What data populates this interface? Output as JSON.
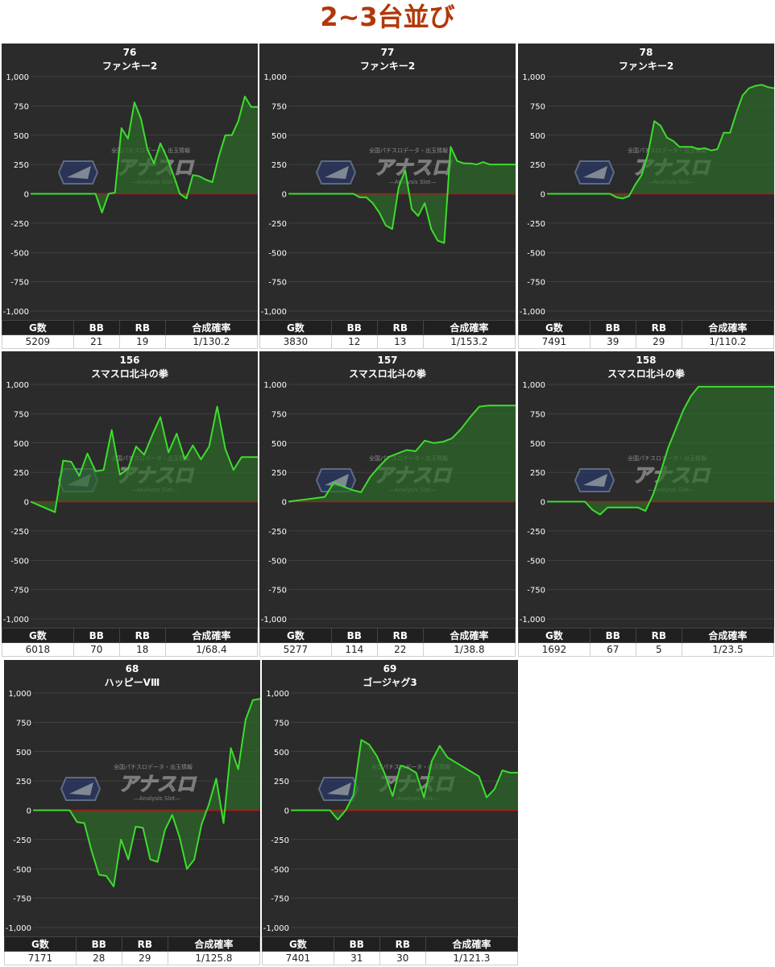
{
  "page": {
    "title": "2~3台並び"
  },
  "watermark": {
    "brand": "アナスロ",
    "tagline": "全国パチスロデータ・出玉情報",
    "sub": "Analysis Slot"
  },
  "stats_headers": [
    "G数",
    "BB",
    "RB",
    "合成確率"
  ],
  "colors": {
    "line": "#3ddc2e",
    "fill": "#2e6b2a",
    "zero": "#b01a1a",
    "bg": "#2b2b2b",
    "grid": "#555555"
  },
  "cards": [
    {
      "number": "76",
      "machine": "ファンキー2",
      "stats": [
        "5209",
        "21",
        "19",
        "1/130.2"
      ]
    },
    {
      "number": "77",
      "machine": "ファンキー2",
      "stats": [
        "3830",
        "12",
        "13",
        "1/153.2"
      ]
    },
    {
      "number": "78",
      "machine": "ファンキー2",
      "stats": [
        "7491",
        "39",
        "29",
        "1/110.2"
      ]
    },
    {
      "number": "156",
      "machine": "スマスロ北斗の拳",
      "stats": [
        "6018",
        "70",
        "18",
        "1/68.4"
      ]
    },
    {
      "number": "157",
      "machine": "スマスロ北斗の拳",
      "stats": [
        "5277",
        "114",
        "22",
        "1/38.8"
      ]
    },
    {
      "number": "158",
      "machine": "スマスロ北斗の拳",
      "stats": [
        "1692",
        "67",
        "5",
        "1/23.5"
      ]
    },
    {
      "number": "68",
      "machine": "ハッピーVⅢ",
      "stats": [
        "7171",
        "28",
        "29",
        "1/125.8"
      ]
    },
    {
      "number": "69",
      "machine": "ゴージャグ3",
      "stats": [
        "7401",
        "31",
        "30",
        "1/121.3"
      ]
    }
  ],
  "chart_data": [
    {
      "type": "area",
      "title": "76 ファンキー2",
      "ylim": [
        -1000,
        1000
      ],
      "yticks": [
        "1,000",
        "750",
        "500",
        "250",
        "0",
        "-250",
        "-500",
        "-750",
        "-1,000"
      ],
      "values": [
        0,
        0,
        0,
        0,
        0,
        0,
        0,
        0,
        0,
        0,
        0,
        -160,
        0,
        10,
        560,
        470,
        780,
        640,
        380,
        260,
        430,
        310,
        160,
        0,
        -40,
        160,
        150,
        120,
        100,
        320,
        500,
        500,
        620,
        830,
        740,
        740
      ]
    },
    {
      "type": "area",
      "title": "77 ファンキー2",
      "ylim": [
        -1000,
        1000
      ],
      "yticks": [
        "1,000",
        "750",
        "500",
        "250",
        "0",
        "-250",
        "-500",
        "-750",
        "-1,000"
      ],
      "values": [
        0,
        0,
        0,
        0,
        0,
        0,
        0,
        0,
        0,
        0,
        0,
        -30,
        -30,
        -80,
        -160,
        -270,
        -300,
        60,
        200,
        -130,
        -190,
        -80,
        -300,
        -400,
        -420,
        400,
        280,
        260,
        260,
        250,
        270,
        250,
        250,
        250,
        250,
        250
      ]
    },
    {
      "type": "area",
      "title": "78 ファンキー2",
      "ylim": [
        -1000,
        1000
      ],
      "yticks": [
        "1,000",
        "750",
        "500",
        "250",
        "0",
        "-250",
        "-500",
        "-750",
        "-1,000"
      ],
      "values": [
        0,
        0,
        0,
        0,
        0,
        0,
        0,
        0,
        0,
        0,
        0,
        -30,
        -40,
        -20,
        80,
        160,
        340,
        620,
        580,
        480,
        450,
        400,
        400,
        400,
        380,
        390,
        370,
        380,
        520,
        520,
        690,
        840,
        900,
        920,
        930,
        910,
        900
      ]
    },
    {
      "type": "area",
      "title": "156 スマスロ北斗の拳",
      "ylim": [
        -1000,
        1000
      ],
      "yticks": [
        "1,000",
        "750",
        "500",
        "250",
        "0",
        "-250",
        "-500",
        "-750",
        "-1,000"
      ],
      "values": [
        0,
        -30,
        -60,
        -90,
        350,
        340,
        220,
        410,
        260,
        270,
        610,
        230,
        280,
        470,
        400,
        570,
        720,
        420,
        580,
        360,
        480,
        360,
        470,
        810,
        450,
        270,
        380,
        380,
        380
      ]
    },
    {
      "type": "area",
      "title": "157 スマスロ北斗の拳",
      "ylim": [
        -1000,
        1000
      ],
      "yticks": [
        "1,000",
        "750",
        "500",
        "250",
        "0",
        "-250",
        "-500",
        "-750",
        "-1,000"
      ],
      "values": [
        0,
        10,
        20,
        30,
        40,
        160,
        130,
        100,
        80,
        210,
        300,
        380,
        410,
        440,
        430,
        520,
        500,
        510,
        540,
        620,
        720,
        810,
        820,
        820,
        820,
        820
      ]
    },
    {
      "type": "area",
      "title": "158 スマスロ北斗の拳",
      "ylim": [
        -1000,
        1000
      ],
      "yticks": [
        "1,000",
        "750",
        "500",
        "250",
        "0",
        "-250",
        "-500",
        "-750",
        "-1,000"
      ],
      "values": [
        0,
        0,
        0,
        0,
        0,
        0,
        -70,
        -110,
        -50,
        -50,
        -50,
        -50,
        -50,
        -80,
        60,
        250,
        460,
        620,
        780,
        900,
        980,
        980,
        980,
        980,
        980,
        980,
        980,
        980,
        980,
        980,
        980
      ]
    },
    {
      "type": "area",
      "title": "68 ハッピーVⅢ",
      "ylim": [
        -1000,
        1000
      ],
      "yticks": [
        "1,000",
        "750",
        "500",
        "250",
        "0",
        "-250",
        "-500",
        "-750",
        "-1,000"
      ],
      "values": [
        0,
        0,
        0,
        0,
        0,
        0,
        -100,
        -110,
        -350,
        -550,
        -560,
        -650,
        -250,
        -420,
        -140,
        -150,
        -420,
        -440,
        -170,
        -40,
        -230,
        -500,
        -420,
        -120,
        50,
        270,
        -110,
        530,
        350,
        770,
        940,
        950
      ]
    },
    {
      "type": "area",
      "title": "69 ゴージャグ3",
      "ylim": [
        -1000,
        1000
      ],
      "yticks": [
        "1,000",
        "750",
        "500",
        "250",
        "0",
        "-250",
        "-500",
        "-750",
        "-1,000"
      ],
      "values": [
        0,
        0,
        0,
        0,
        0,
        0,
        -80,
        0,
        130,
        600,
        560,
        460,
        310,
        120,
        380,
        360,
        320,
        110,
        420,
        550,
        450,
        410,
        370,
        330,
        290,
        110,
        180,
        340,
        320,
        320
      ]
    }
  ]
}
